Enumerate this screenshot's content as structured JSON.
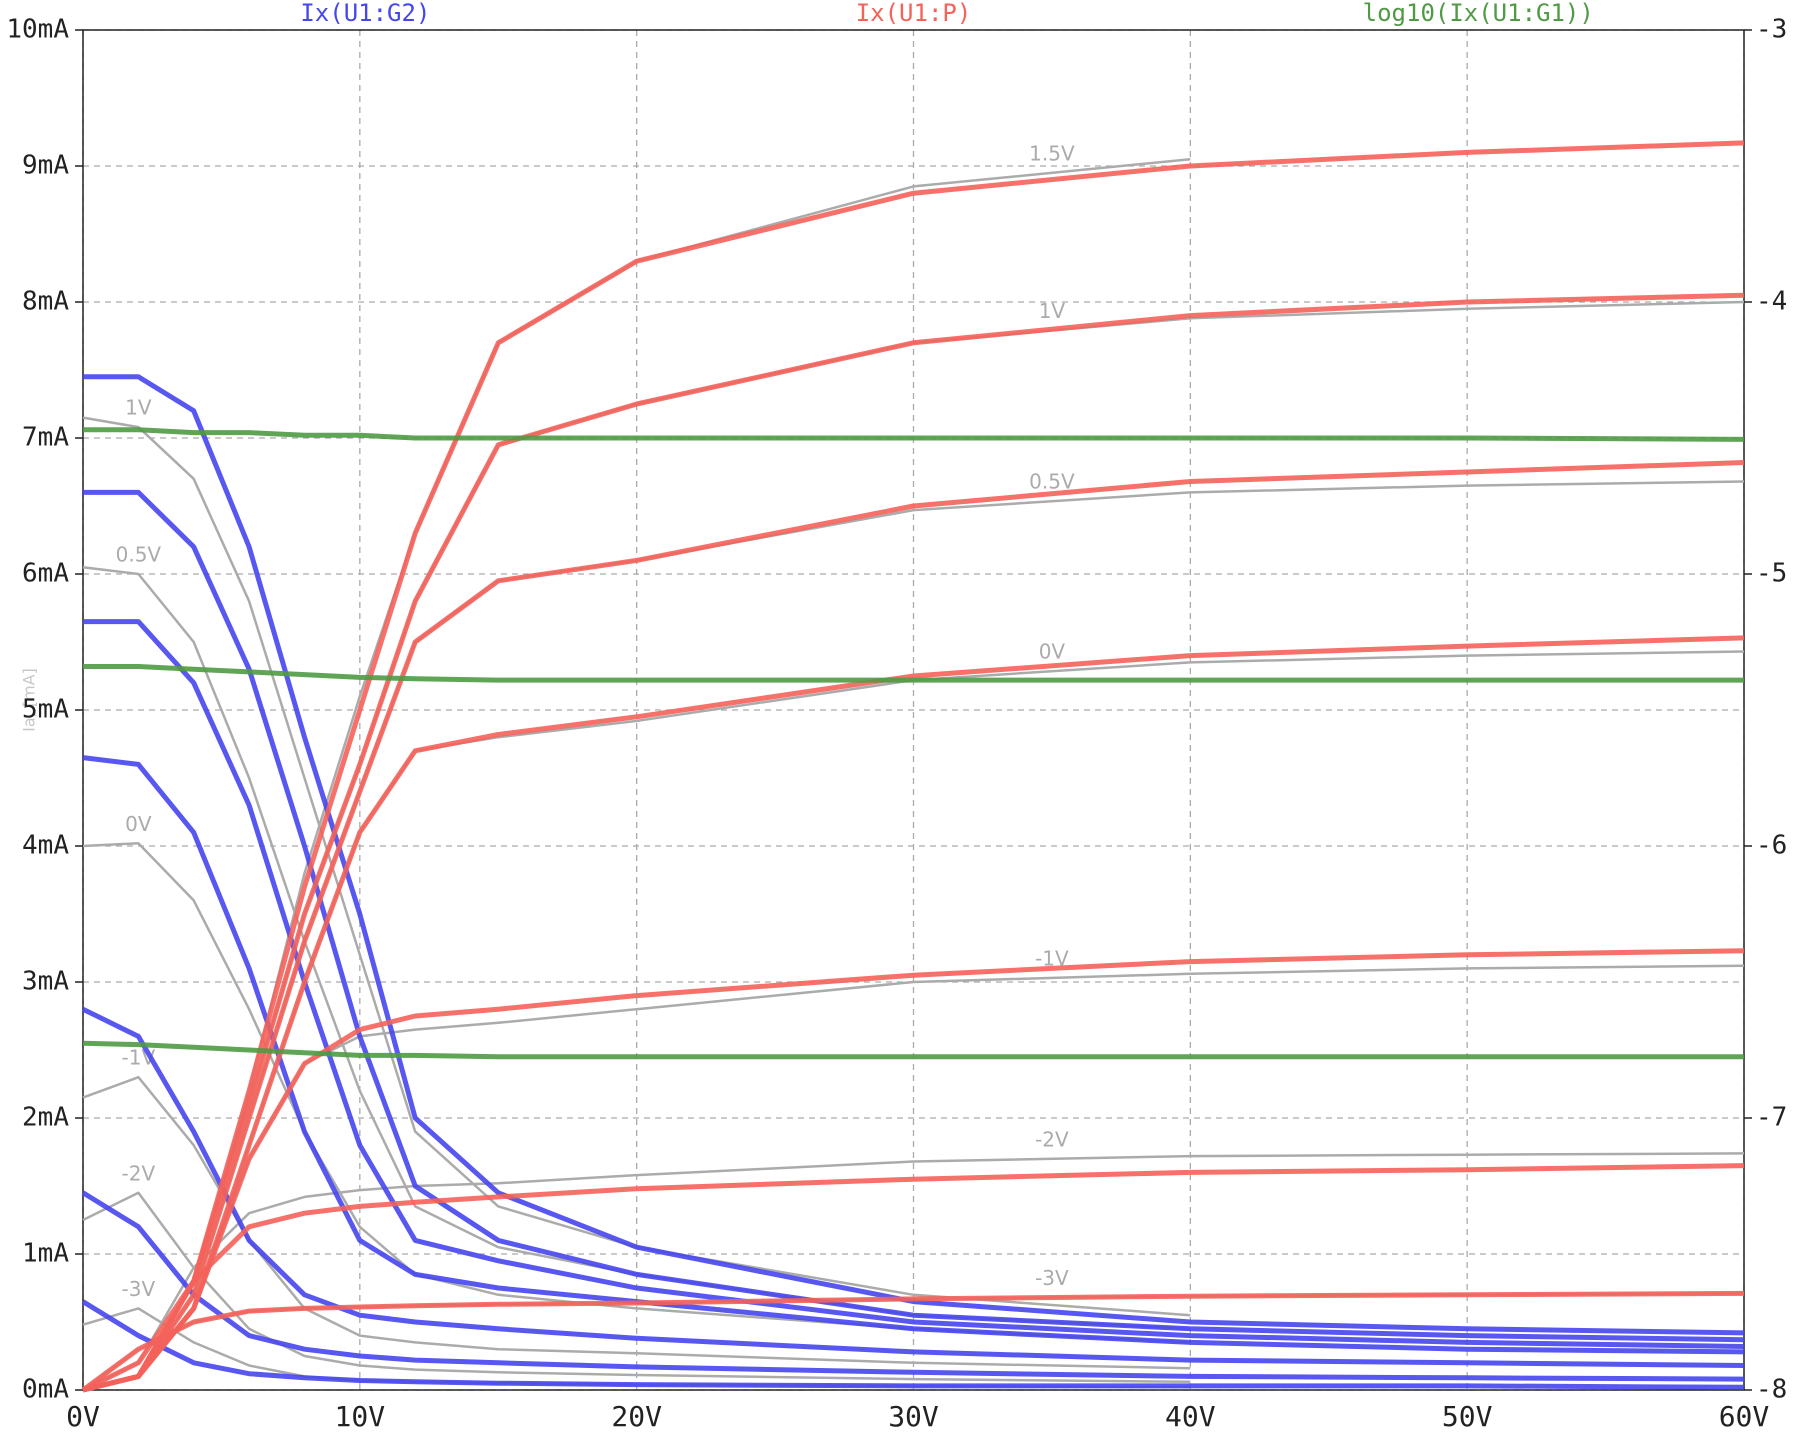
{
  "chart_data": {
    "type": "line",
    "ylabel": "Ia, [mA]",
    "x": [
      0,
      2,
      4,
      6,
      8,
      10,
      12,
      15,
      20,
      30,
      40,
      50,
      60
    ],
    "xlim": [
      0,
      60
    ],
    "xticks": [
      {
        "value": 0,
        "label": "0V"
      },
      {
        "value": 10,
        "label": "10V"
      },
      {
        "value": 20,
        "label": "20V"
      },
      {
        "value": 30,
        "label": "30V"
      },
      {
        "value": 40,
        "label": "40V"
      },
      {
        "value": 50,
        "label": "50V"
      },
      {
        "value": 60,
        "label": "60V"
      }
    ],
    "ylim": [
      0,
      10
    ],
    "yticks": [
      {
        "value": 0,
        "label": "0mA"
      },
      {
        "value": 1,
        "label": "1mA"
      },
      {
        "value": 2,
        "label": "2mA"
      },
      {
        "value": 3,
        "label": "3mA"
      },
      {
        "value": 4,
        "label": "4mA"
      },
      {
        "value": 5,
        "label": "5mA"
      },
      {
        "value": 6,
        "label": "6mA"
      },
      {
        "value": 7,
        "label": "7mA"
      },
      {
        "value": 8,
        "label": "8mA"
      },
      {
        "value": 9,
        "label": "9mA"
      },
      {
        "value": 10,
        "label": "10mA"
      }
    ],
    "y2lim": [
      -8,
      -3
    ],
    "y2ticks": [
      -3,
      -4,
      -5,
      -6,
      -7,
      -8
    ],
    "grid": true,
    "series": [
      {
        "name": "Ix(U1:G2)",
        "color": "#4646ee",
        "curves": [
          [
            7.45,
            7.45,
            7.2,
            6.2,
            4.8,
            3.5,
            2.0,
            1.45,
            1.05,
            0.65,
            0.5,
            0.45,
            0.42
          ],
          [
            6.6,
            6.6,
            6.2,
            5.3,
            4.0,
            2.6,
            1.5,
            1.1,
            0.85,
            0.55,
            0.45,
            0.4,
            0.37
          ],
          [
            5.65,
            5.65,
            5.2,
            4.3,
            3.0,
            1.8,
            1.1,
            0.95,
            0.75,
            0.5,
            0.4,
            0.35,
            0.32
          ],
          [
            4.65,
            4.6,
            4.1,
            3.1,
            1.9,
            1.1,
            0.85,
            0.75,
            0.65,
            0.45,
            0.35,
            0.3,
            0.28
          ],
          [
            2.8,
            2.6,
            1.9,
            1.1,
            0.7,
            0.55,
            0.5,
            0.45,
            0.38,
            0.28,
            0.22,
            0.2,
            0.18
          ],
          [
            1.45,
            1.2,
            0.7,
            0.4,
            0.3,
            0.25,
            0.22,
            0.2,
            0.17,
            0.13,
            0.1,
            0.09,
            0.08
          ],
          [
            0.65,
            0.4,
            0.2,
            0.12,
            0.09,
            0.07,
            0.06,
            0.05,
            0.04,
            0.03,
            0.03,
            0.03,
            0.02
          ]
        ]
      },
      {
        "name": "Ix(U1:P)",
        "color": "#f4625a",
        "curves": [
          [
            0,
            0.1,
            0.8,
            2.2,
            3.7,
            5.0,
            6.3,
            7.7,
            8.3,
            8.8,
            9.0,
            9.1,
            9.17
          ],
          [
            0,
            0.1,
            0.8,
            2.1,
            3.5,
            4.6,
            5.8,
            6.95,
            7.25,
            7.7,
            7.9,
            8.0,
            8.05
          ],
          [
            0,
            0.1,
            0.7,
            2.0,
            3.3,
            4.4,
            5.5,
            5.95,
            6.1,
            6.5,
            6.68,
            6.75,
            6.82
          ],
          [
            0,
            0.1,
            0.6,
            1.8,
            3.0,
            4.1,
            4.7,
            4.82,
            4.95,
            5.25,
            5.4,
            5.47,
            5.53
          ],
          [
            0,
            0.1,
            0.6,
            1.7,
            2.4,
            2.65,
            2.75,
            2.8,
            2.9,
            3.05,
            3.15,
            3.2,
            3.23
          ],
          [
            0,
            0.2,
            0.8,
            1.2,
            1.3,
            1.35,
            1.38,
            1.42,
            1.48,
            1.55,
            1.6,
            1.62,
            1.65
          ],
          [
            0,
            0.3,
            0.5,
            0.58,
            0.6,
            0.61,
            0.62,
            0.63,
            0.64,
            0.67,
            0.69,
            0.7,
            0.71
          ]
        ]
      },
      {
        "name": "log10(Ix(U1:G1))",
        "color": "#4f9a44",
        "axis": "y2",
        "curves": [
          [
            -4.47,
            -4.47,
            -4.48,
            -4.48,
            -4.49,
            -4.49,
            -4.5,
            -4.5,
            -4.5,
            -4.5,
            -4.5,
            -4.5,
            -4.505
          ],
          [
            -5.34,
            -5.34,
            -5.35,
            -5.36,
            -5.37,
            -5.38,
            -5.385,
            -5.39,
            -5.39,
            -5.39,
            -5.39,
            -5.39,
            -5.39
          ],
          [
            -6.725,
            -6.73,
            -6.74,
            -6.75,
            -6.76,
            -6.77,
            -6.77,
            -6.775,
            -6.775,
            -6.775,
            -6.775,
            -6.775,
            -6.775
          ]
        ]
      }
    ],
    "reference": {
      "color": "#ababab",
      "curves": [
        {
          "label": "1.5V",
          "values": [
            0,
            0.1,
            0.8,
            2.2,
            3.8,
            5.1,
            6.3,
            7.7,
            8.3,
            8.85,
            9.05,
            null,
            null
          ]
        },
        {
          "label": "1V",
          "values": [
            0,
            0.1,
            0.8,
            2.1,
            3.5,
            4.6,
            5.8,
            6.95,
            7.25,
            7.7,
            7.88,
            7.95,
            8.0
          ]
        },
        {
          "label": "0.5V",
          "values": [
            0,
            0.1,
            0.7,
            2.0,
            3.3,
            4.4,
            5.5,
            5.95,
            6.1,
            6.47,
            6.6,
            6.65,
            6.68
          ]
        },
        {
          "label": "0V",
          "values": [
            0,
            0.1,
            0.6,
            1.8,
            3.0,
            4.1,
            4.7,
            4.8,
            4.92,
            5.22,
            5.35,
            5.4,
            5.43
          ]
        },
        {
          "label": "-1V",
          "values": [
            0,
            0.1,
            0.6,
            1.7,
            2.4,
            2.6,
            2.65,
            2.7,
            2.8,
            3.0,
            3.06,
            3.1,
            3.12
          ]
        },
        {
          "label": "-2V",
          "values": [
            0,
            0.2,
            0.9,
            1.3,
            1.42,
            1.47,
            1.5,
            1.52,
            1.58,
            1.68,
            1.72,
            1.73,
            1.74
          ]
        },
        {
          "label": "-3V",
          "values": [
            0,
            0.3,
            0.5,
            0.58,
            0.6,
            0.61,
            0.62,
            0.63,
            0.64,
            0.67,
            0.69,
            0.7,
            0.71
          ]
        },
        {
          "label": "1V",
          "values": [
            7.15,
            7.08,
            6.7,
            5.8,
            4.5,
            3.2,
            1.9,
            1.35,
            1.05,
            0.7,
            0.55,
            null,
            null
          ]
        },
        {
          "label": "0.5V",
          "values": [
            6.05,
            6.0,
            5.5,
            4.5,
            3.3,
            2.2,
            1.35,
            1.05,
            0.85,
            0.55,
            0.45,
            null,
            null
          ]
        },
        {
          "label": "0V",
          "values": [
            4.0,
            4.02,
            3.6,
            2.8,
            1.9,
            1.2,
            0.85,
            0.7,
            0.6,
            0.45,
            0.35,
            null,
            null
          ]
        },
        {
          "label": "-1V",
          "values": [
            2.15,
            2.3,
            1.8,
            1.1,
            0.6,
            0.4,
            0.35,
            0.3,
            0.27,
            0.2,
            0.16,
            null,
            null
          ]
        },
        {
          "label": "-2V",
          "values": [
            1.25,
            1.45,
            0.9,
            0.45,
            0.25,
            0.18,
            0.15,
            0.13,
            0.11,
            0.08,
            0.06,
            null,
            null
          ]
        },
        {
          "label": "-3V",
          "values": [
            0.48,
            0.6,
            0.35,
            0.18,
            0.1,
            0.07,
            0.06,
            0.05,
            0.04,
            0.03,
            0.02,
            null,
            null
          ]
        }
      ]
    }
  }
}
